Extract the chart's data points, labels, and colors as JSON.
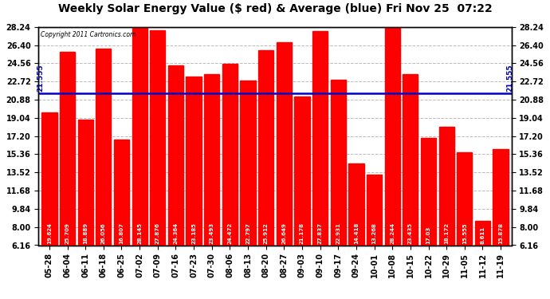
{
  "title": "Weekly Solar Energy Value ($ red) & Average (blue) Fri Nov 25  07:22",
  "copyright": "Copyright 2011 Cartronics.com",
  "average_value": 21.555,
  "categories": [
    "05-28",
    "06-04",
    "06-11",
    "06-18",
    "06-25",
    "07-02",
    "07-09",
    "07-16",
    "07-23",
    "07-30",
    "08-06",
    "08-13",
    "08-20",
    "08-27",
    "09-03",
    "09-10",
    "09-17",
    "09-24",
    "10-01",
    "10-08",
    "10-15",
    "10-22",
    "10-29",
    "11-05",
    "11-12",
    "11-19"
  ],
  "values": [
    19.624,
    25.709,
    18.889,
    26.056,
    16.807,
    28.145,
    27.876,
    24.364,
    23.185,
    23.493,
    24.472,
    22.797,
    25.912,
    26.649,
    21.178,
    27.837,
    22.931,
    14.418,
    13.268,
    28.244,
    23.435,
    17.03,
    18.172,
    15.555,
    8.611,
    15.878
  ],
  "bar_color": "#FF0000",
  "avg_line_color": "#0000CC",
  "background_color": "#FFFFFF",
  "plot_bg_color": "#FFFFFF",
  "ymin": 6.16,
  "ymax": 28.24,
  "yticks": [
    6.16,
    8.0,
    9.84,
    11.68,
    13.52,
    15.36,
    17.2,
    19.04,
    20.88,
    22.72,
    24.56,
    26.4,
    28.24
  ],
  "grid_color": "#BBBBBB",
  "title_fontsize": 10,
  "tick_fontsize": 7,
  "label_fontsize": 5.5,
  "avg_label": "21.555"
}
